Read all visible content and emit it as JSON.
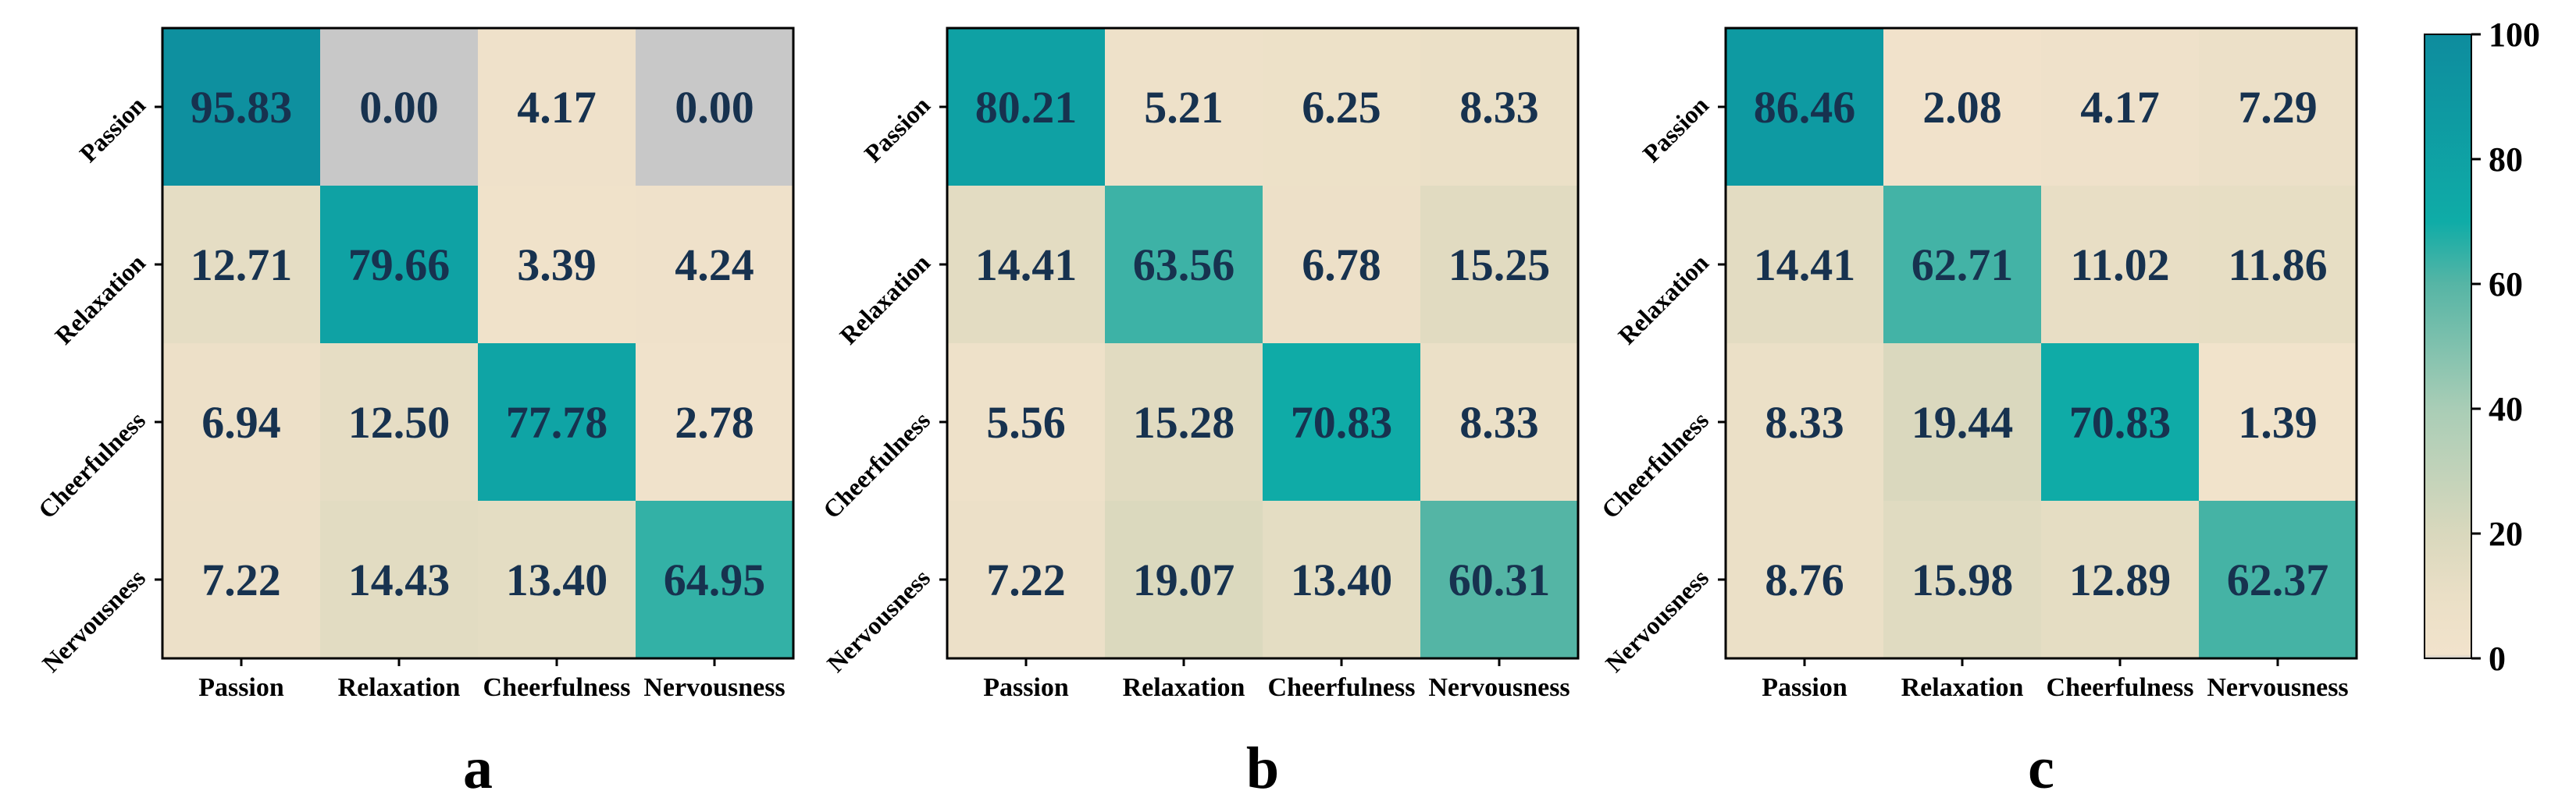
{
  "chart_data": [
    {
      "type": "heatmap",
      "panel_label": "a",
      "x_categories": [
        "Passion",
        "Relaxation",
        "Cheerfulness",
        "Nervousness"
      ],
      "y_categories": [
        "Passion",
        "Relaxation",
        "Cheerfulness",
        "Nervousness"
      ],
      "values": [
        [
          95.83,
          0.0,
          4.17,
          0.0
        ],
        [
          12.71,
          79.66,
          3.39,
          4.24
        ],
        [
          6.94,
          12.5,
          77.78,
          2.78
        ],
        [
          7.22,
          14.43,
          13.4,
          64.95
        ]
      ],
      "value_labels": [
        [
          "95.83",
          "0.00",
          "4.17",
          "0.00"
        ],
        [
          "12.71",
          "79.66",
          "3.39",
          "4.24"
        ],
        [
          "6.94",
          "12.50",
          "77.78",
          "2.78"
        ],
        [
          "7.22",
          "14.43",
          "13.40",
          "64.95"
        ]
      ]
    },
    {
      "type": "heatmap",
      "panel_label": "b",
      "x_categories": [
        "Passion",
        "Relaxation",
        "Cheerfulness",
        "Nervousness"
      ],
      "y_categories": [
        "Passion",
        "Relaxation",
        "Cheerfulness",
        "Nervousness"
      ],
      "values": [
        [
          80.21,
          5.21,
          6.25,
          8.33
        ],
        [
          14.41,
          63.56,
          6.78,
          15.25
        ],
        [
          5.56,
          15.28,
          70.83,
          8.33
        ],
        [
          7.22,
          19.07,
          13.4,
          60.31
        ]
      ],
      "value_labels": [
        [
          "80.21",
          "5.21",
          "6.25",
          "8.33"
        ],
        [
          "14.41",
          "63.56",
          "6.78",
          "15.25"
        ],
        [
          "5.56",
          "15.28",
          "70.83",
          "8.33"
        ],
        [
          "7.22",
          "19.07",
          "13.40",
          "60.31"
        ]
      ]
    },
    {
      "type": "heatmap",
      "panel_label": "c",
      "x_categories": [
        "Passion",
        "Relaxation",
        "Cheerfulness",
        "Nervousness"
      ],
      "y_categories": [
        "Passion",
        "Relaxation",
        "Cheerfulness",
        "Nervousness"
      ],
      "values": [
        [
          86.46,
          2.08,
          4.17,
          7.29
        ],
        [
          14.41,
          62.71,
          11.02,
          11.86
        ],
        [
          8.33,
          19.44,
          70.83,
          1.39
        ],
        [
          8.76,
          15.98,
          12.89,
          62.37
        ]
      ],
      "value_labels": [
        [
          "86.46",
          "2.08",
          "4.17",
          "7.29"
        ],
        [
          "14.41",
          "62.71",
          "11.02",
          "11.86"
        ],
        [
          "8.33",
          "19.44",
          "70.83",
          "1.39"
        ],
        [
          "8.76",
          "15.98",
          "12.89",
          "62.37"
        ]
      ]
    }
  ],
  "colorbar": {
    "range": [
      0,
      100
    ],
    "tick_values": [
      0,
      20,
      40,
      60,
      80,
      100
    ],
    "tick_labels": [
      "0",
      "20",
      "40",
      "60",
      "80",
      "100"
    ],
    "stops": [
      {
        "value": 0,
        "color": "#c8c8c8"
      },
      {
        "value": 0.6,
        "color": "#f2e3cc"
      },
      {
        "value": 10,
        "color": "#eadfc6"
      },
      {
        "value": 20,
        "color": "#d9d8bd"
      },
      {
        "value": 40,
        "color": "#a9cdb6"
      },
      {
        "value": 60,
        "color": "#56b5a5"
      },
      {
        "value": 70,
        "color": "#0faca7"
      },
      {
        "value": 100,
        "color": "#0e8c9e"
      }
    ]
  },
  "colors": {
    "cell_text": "#17324f",
    "frame": "#000000"
  }
}
